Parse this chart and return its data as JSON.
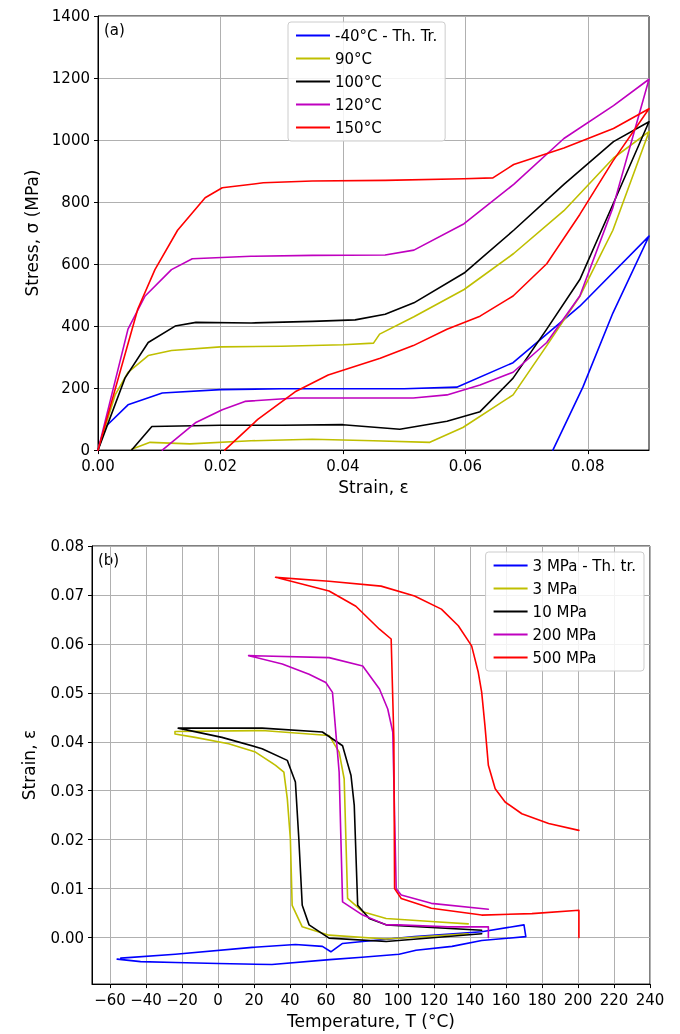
{
  "chart_data": [
    {
      "type": "line",
      "xlabel": "Strain, ε",
      "ylabel": "Stress, σ (MPa)",
      "annotations": [
        "(a)"
      ],
      "legend": "top",
      "grid": true,
      "marker": "none",
      "xlim": [
        0,
        0.09
      ],
      "xticks": [
        {
          "value": 0,
          "label": "0.00"
        },
        {
          "value": 0.02,
          "label": "0.02"
        },
        {
          "value": 0.04,
          "label": "0.04"
        },
        {
          "value": 0.06,
          "label": "0.06"
        },
        {
          "value": 0.08,
          "label": "0.08"
        }
      ],
      "ylim": [
        0,
        1400
      ],
      "yticks": [
        0,
        200,
        400,
        600,
        800,
        1000,
        1200,
        1400
      ],
      "series": [
        {
          "name": "-40°C - Th. Tr.",
          "color": "#0000ff",
          "x": [
            0,
            0.0011,
            0.0049,
            0.0105,
            0.02,
            0.03,
            0.04,
            0.05,
            0.0586,
            0.0678,
            0.0787,
            0.09,
            0.0841,
            0.0792,
            0.0743
          ],
          "values": [
            0,
            73,
            146,
            184,
            195,
            198,
            198,
            198,
            203,
            282,
            464,
            690,
            442,
            203,
            0
          ]
        },
        {
          "name": "90°C",
          "color": "#bfbf00",
          "x": [
            0,
            0.0028,
            0.0049,
            0.0082,
            0.012,
            0.02,
            0.03,
            0.04,
            0.045,
            0.046,
            0.0516,
            0.0598,
            0.0679,
            0.0761,
            0.0842,
            0.09,
            0.0841,
            0.0787,
            0.0733,
            0.0678,
            0.0596,
            0.0542,
            0.045,
            0.035,
            0.025,
            0.015,
            0.0085,
            0.0055
          ],
          "values": [
            0,
            178,
            251,
            305,
            321,
            333,
            335,
            340,
            345,
            374,
            430,
            518,
            634,
            772,
            942,
            1027,
            709,
            496,
            337,
            178,
            73,
            25,
            30,
            35,
            30,
            20,
            25,
            3
          ]
        },
        {
          "name": "100°C",
          "color": "#000000",
          "x": [
            0,
            0.0044,
            0.0082,
            0.0126,
            0.016,
            0.025,
            0.035,
            0.042,
            0.0469,
            0.0516,
            0.0598,
            0.0679,
            0.0761,
            0.0842,
            0.09,
            0.0841,
            0.0787,
            0.0733,
            0.0678,
            0.0624,
            0.057,
            0.0493,
            0.04,
            0.03,
            0.02,
            0.0088,
            0.0055
          ],
          "values": [
            0,
            232,
            347,
            400,
            412,
            410,
            415,
            420,
            438,
            475,
            571,
            709,
            857,
            995,
            1059,
            792,
            550,
            390,
            232,
            124,
            93,
            67,
            82,
            80,
            80,
            76,
            0
          ]
        },
        {
          "name": "120°C",
          "color": "#bf00bf",
          "x": [
            0,
            0.0049,
            0.0077,
            0.012,
            0.0154,
            0.025,
            0.035,
            0.0469,
            0.0516,
            0.0598,
            0.0679,
            0.0761,
            0.0842,
            0.09,
            0.0841,
            0.0787,
            0.0733,
            0.0678,
            0.0624,
            0.057,
            0.0515,
            0.0469,
            0.0322,
            0.024,
            0.0203,
            0.0159,
            0.0105
          ],
          "values": [
            0,
            390,
            497,
            582,
            617,
            625,
            628,
            629,
            645,
            730,
            857,
            1005,
            1111,
            1196,
            782,
            497,
            347,
            251,
            210,
            178,
            168,
            168,
            168,
            157,
            130,
            88,
            0
          ]
        },
        {
          "name": "150°C",
          "color": "#ff0000",
          "x": [
            0,
            0.0065,
            0.0093,
            0.013,
            0.0175,
            0.0203,
            0.027,
            0.035,
            0.0469,
            0.0598,
            0.0645,
            0.0679,
            0.0761,
            0.0842,
            0.09,
            0.0841,
            0.0787,
            0.0733,
            0.0678,
            0.0624,
            0.057,
            0.0515,
            0.0461,
            0.0376,
            0.0322,
            0.0261,
            0.0207
          ],
          "values": [
            0,
            455,
            582,
            709,
            814,
            846,
            862,
            868,
            870,
            875,
            878,
            921,
            974,
            1037,
            1101,
            932,
            760,
            601,
            497,
            432,
            390,
            337,
            296,
            242,
            188,
            99,
            0
          ]
        }
      ]
    },
    {
      "type": "line",
      "xlabel": "Temperature, T (°C)",
      "ylabel": "Strain, ε",
      "annotations": [
        "(b)"
      ],
      "legend": "top right",
      "grid": true,
      "marker": "none",
      "xlim": [
        -70,
        240
      ],
      "xticks": [
        {
          "value": -60,
          "label": "−60"
        },
        {
          "value": -40,
          "label": "−40"
        },
        {
          "value": -20,
          "label": "−20"
        },
        0,
        20,
        40,
        60,
        80,
        100,
        120,
        140,
        160,
        180,
        200,
        220,
        240
      ],
      "ylim": [
        -0.0095,
        0.08
      ],
      "yticks": [
        {
          "value": 0,
          "label": "0.00"
        },
        {
          "value": 0.01,
          "label": "0.01"
        },
        {
          "value": 0.02,
          "label": "0.02"
        },
        {
          "value": 0.03,
          "label": "0.03"
        },
        {
          "value": 0.04,
          "label": "0.04"
        },
        {
          "value": 0.05,
          "label": "0.05"
        },
        {
          "value": 0.06,
          "label": "0.06"
        },
        {
          "value": 0.07,
          "label": "0.07"
        },
        {
          "value": 0.08,
          "label": "0.08"
        }
      ],
      "series": [
        {
          "name": "3 MPa - Th. tr.",
          "color": "#0000ff",
          "x": [
            -56,
            -43,
            -23.7,
            0,
            30,
            62,
            80,
            100.6,
            110,
            130,
            146.5,
            171,
            170,
            146.5,
            109.2,
            80.4,
            69.2,
            62.7,
            58,
            43,
            19,
            -23.7,
            -54
          ],
          "values": [
            -0.0044,
            -0.0049,
            -0.0051,
            -0.0053,
            -0.0055,
            -0.0045,
            -0.004,
            -0.0034,
            -0.0026,
            -0.0018,
            -0.0006,
            0.0002,
            0.0026,
            0.0012,
            0.0002,
            -0.0008,
            -0.0012,
            -0.0029,
            -0.0018,
            -0.0014,
            -0.002,
            -0.0034,
            -0.0042
          ]
        },
        {
          "name": "3 MPa",
          "color": "#bfbf00",
          "x": [
            139,
            93.4,
            61.7,
            46.8,
            41.2,
            40.2,
            38.5,
            36.6,
            32,
            20.8,
            5.9,
            -12.7,
            -23.9,
            -23.9,
            24.5,
            61.7,
            67.3,
            70.1,
            72,
            80.4,
            93.4,
            118.5,
            139
          ],
          "values": [
            0.0008,
            -0.0003,
            0.0005,
            0.0022,
            0.0066,
            0.0202,
            0.0284,
            0.0338,
            0.0352,
            0.0379,
            0.0396,
            0.0409,
            0.0416,
            0.0421,
            0.0423,
            0.0413,
            0.0379,
            0.0324,
            0.008,
            0.0053,
            0.0039,
            0.0033,
            0.0028
          ]
        },
        {
          "name": "10 MPa",
          "color": "#000000",
          "x": [
            146.5,
            93.4,
            61.7,
            50.6,
            46.8,
            44.9,
            43,
            38.5,
            24.5,
            2.2,
            -22.1,
            24.5,
            58,
            69.2,
            73.9,
            75.7,
            77.6,
            84,
            93.4,
            146.5
          ],
          "values": [
            0.0008,
            -0.0008,
            -0.0001,
            0.0026,
            0.0066,
            0.0202,
            0.0318,
            0.0362,
            0.0386,
            0.0409,
            0.0428,
            0.0428,
            0.042,
            0.0392,
            0.0331,
            0.027,
            0.0066,
            0.0039,
            0.0026,
            0.0015
          ]
        },
        {
          "name": "200 MPa",
          "color": "#bf00bf",
          "x": [
            150.2,
            150.2,
            127.8,
            100,
            93.4,
            80.4,
            69.2,
            67.3,
            63.6,
            59.9,
            50.6,
            35.7,
            17,
            61.7,
            80.4,
            89.7,
            94.3,
            97.1,
            99,
            101.8,
            118.5,
            150.2
          ],
          "values": [
            0,
            0.0022,
            0.0022,
            0.0026,
            0.0026,
            0.0046,
            0.0073,
            0.0338,
            0.0501,
            0.0521,
            0.0538,
            0.0559,
            0.0576,
            0.0572,
            0.0555,
            0.0508,
            0.0467,
            0.042,
            0.01,
            0.0087,
            0.007,
            0.0058
          ]
        },
        {
          "name": "500 MPa",
          "color": "#ff0000",
          "x": [
            200.5,
            200.5,
            174.4,
            146.5,
            118.5,
            101.8,
            98.1,
            97.7,
            96.2,
            89.7,
            76.6,
            61.7,
            32,
            61.7,
            90.6,
            109.2,
            124.1,
            133.5,
            140.9,
            144.6,
            146.5,
            148.3,
            150.2,
            154,
            159.5,
            168.8,
            183.7,
            200.5
          ],
          "values": [
            0,
            0.0056,
            0.0049,
            0.0046,
            0.006,
            0.008,
            0.01,
            0.0406,
            0.061,
            0.063,
            0.0677,
            0.0708,
            0.0736,
            0.0728,
            0.0718,
            0.0698,
            0.0671,
            0.0637,
            0.0596,
            0.0542,
            0.0501,
            0.0433,
            0.0352,
            0.0304,
            0.0277,
            0.0253,
            0.0233,
            0.0219
          ]
        }
      ]
    }
  ]
}
